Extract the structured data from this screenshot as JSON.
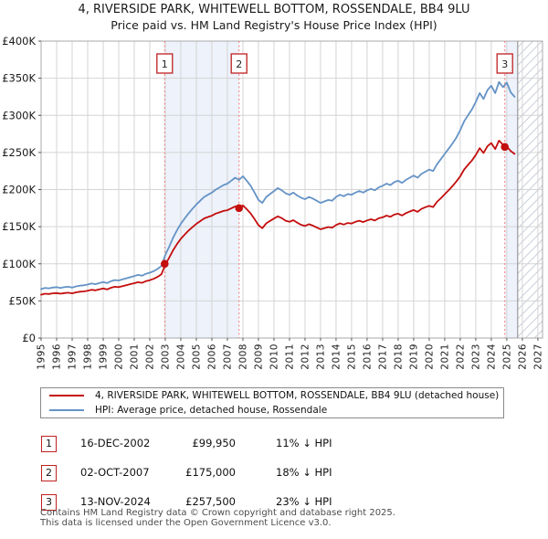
{
  "title": {
    "line1": "4, RIVERSIDE PARK, WHITEWELL BOTTOM, ROSSENDALE, BB4 9LU",
    "line2": "Price paid vs. HM Land Registry's House Price Index (HPI)"
  },
  "chart_data": {
    "type": "line",
    "x_unit": "year",
    "value_unit": "GBP thousands",
    "x_range": [
      1995,
      2027.3
    ],
    "y_range_thousands": [
      0,
      400
    ],
    "grid": true,
    "x_ticks": [
      1995,
      1996,
      1997,
      1998,
      1999,
      2000,
      2001,
      2002,
      2003,
      2004,
      2005,
      2006,
      2007,
      2008,
      2009,
      2010,
      2011,
      2012,
      2013,
      2014,
      2015,
      2016,
      2017,
      2018,
      2019,
      2020,
      2021,
      2022,
      2023,
      2024,
      2025,
      2026,
      2027
    ],
    "y_ticks": [
      {
        "v": 0,
        "label": "£0"
      },
      {
        "v": 50,
        "label": "£50K"
      },
      {
        "v": 100,
        "label": "£100K"
      },
      {
        "v": 150,
        "label": "£150K"
      },
      {
        "v": 200,
        "label": "£200K"
      },
      {
        "v": 250,
        "label": "£250K"
      },
      {
        "v": 300,
        "label": "£300K"
      },
      {
        "v": 350,
        "label": "£350K"
      },
      {
        "v": 400,
        "label": "£400K"
      }
    ],
    "colors": {
      "property": "#c40d0d",
      "hpi": "#6593c6",
      "sale_dash": "#f47a7a",
      "band": "#edf2fb",
      "grid": "#d4d4d4",
      "border": "#a8a8a8",
      "hatch": "#c9ced8",
      "data_end_line": "#888888",
      "annotation": "#c02020"
    },
    "series": [
      {
        "name": "4, RIVERSIDE PARK, WHITEWELL BOTTOM, ROSSENDALE, BB4 9LU (detached house)",
        "color": "#c40d0d",
        "x_start": 1995,
        "x_step": 0.25,
        "values": [
          58.4,
          59.7,
          59.3,
          60.2,
          60.6,
          59.7,
          60.6,
          61.1,
          60.2,
          61.5,
          62.4,
          62.8,
          63.7,
          65,
          64.2,
          65.5,
          66.8,
          65.5,
          67.7,
          69,
          68.6,
          69.9,
          71.2,
          72.6,
          73.9,
          75.2,
          74.3,
          76.6,
          77.9,
          79.7,
          82.3,
          85.8,
          98.8,
          108.1,
          118.1,
          126.4,
          133.7,
          139.3,
          144.8,
          149.3,
          153.9,
          157.4,
          161.1,
          163.1,
          164.8,
          167.6,
          169.3,
          171.2,
          172.2,
          174.7,
          177.3,
          174.7,
          178.6,
          173.5,
          167.7,
          160.2,
          152,
          148,
          154.5,
          157.8,
          161,
          164,
          161.5,
          158,
          156.5,
          158.8,
          155.5,
          152.5,
          151,
          153.3,
          151.5,
          149,
          146.5,
          148,
          149.5,
          148.5,
          152.3,
          154.5,
          152.8,
          155,
          154.2,
          156.5,
          158,
          156.2,
          158.4,
          160,
          158.3,
          161.3,
          162.6,
          164.9,
          163.3,
          166.3,
          167.5,
          165,
          168.2,
          170.5,
          172.4,
          170,
          173.9,
          176.2,
          178,
          176.4,
          183.4,
          188.3,
          193.7,
          199.2,
          204.6,
          210.9,
          217.9,
          227.1,
          233.2,
          239.2,
          246.5,
          255.7,
          249.3,
          258.4,
          262.6,
          254.7,
          266,
          260.4,
          258,
          252,
          248
        ]
      },
      {
        "name": "HPI: Average price, detached house, Rossendale",
        "color": "#6593c6",
        "x_start": 1995,
        "x_step": 0.25,
        "values": [
          66,
          67.5,
          67,
          68,
          68.5,
          67.5,
          68.5,
          69,
          68,
          69.5,
          70.5,
          71,
          72,
          73.5,
          72.5,
          74,
          75.5,
          74,
          76.5,
          78,
          77.5,
          79,
          80.5,
          82,
          83.5,
          85,
          84,
          86.5,
          88,
          90,
          93,
          97,
          112,
          123,
          135,
          145,
          154,
          161,
          168,
          174,
          180,
          185,
          190,
          193,
          196,
          200,
          203,
          206,
          208,
          212,
          216,
          213,
          218,
          212,
          205,
          196,
          186,
          182,
          190,
          194,
          198,
          202,
          199,
          195,
          193,
          196,
          192,
          189,
          187,
          190,
          188,
          185,
          182,
          184,
          186,
          185,
          190,
          193,
          191,
          194,
          193,
          196,
          198,
          196,
          199,
          201,
          199,
          203,
          205,
          208,
          206,
          210,
          212,
          209,
          213,
          216,
          219,
          216,
          221,
          224,
          227,
          225,
          234,
          241,
          248,
          255,
          262,
          270,
          280,
          292,
          300,
          308,
          318,
          330,
          322,
          334,
          340,
          330,
          345,
          338,
          344,
          331,
          325
        ]
      }
    ],
    "sales": [
      {
        "label": "1",
        "date": "16-DEC-2002",
        "x": 2002.96,
        "price": 99950,
        "vs_hpi": "11% ↓ HPI"
      },
      {
        "label": "2",
        "date": "02-OCT-2007",
        "x": 2007.75,
        "price": 175000,
        "vs_hpi": "18% ↓ HPI"
      },
      {
        "label": "3",
        "date": "13-NOV-2024",
        "x": 2024.87,
        "price": 257500,
        "vs_hpi": "23% ↓ HPI"
      }
    ],
    "ownership_bands": [
      [
        2002.96,
        2007.75
      ],
      [
        2024.87,
        2025.7
      ]
    ],
    "data_end_x": 2025.7,
    "hatch_range": [
      2025.7,
      2027.3
    ],
    "legend_position": "below"
  },
  "legend": {
    "items": [
      {
        "label": "4, RIVERSIDE PARK, WHITEWELL BOTTOM, ROSSENDALE, BB4 9LU (detached house)",
        "color": "#c40d0d"
      },
      {
        "label": "HPI: Average price, detached house, Rossendale",
        "color": "#6593c6"
      }
    ]
  },
  "table": {
    "rows": [
      {
        "num": "1",
        "date": "16-DEC-2002",
        "price": "£99,950",
        "delta": "11% ↓ HPI"
      },
      {
        "num": "2",
        "date": "02-OCT-2007",
        "price": "£175,000",
        "delta": "18% ↓ HPI"
      },
      {
        "num": "3",
        "date": "13-NOV-2024",
        "price": "£257,500",
        "delta": "23% ↓ HPI"
      }
    ]
  },
  "footer": {
    "line1": "Contains HM Land Registry data © Crown copyright and database right 2025.",
    "line2": "This data is licensed under the Open Government Licence v3.0."
  }
}
